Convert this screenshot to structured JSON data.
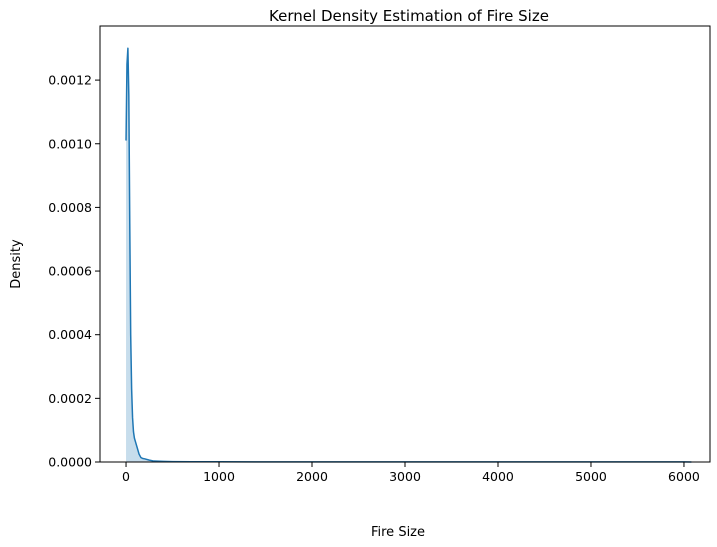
{
  "chart_data": {
    "type": "area",
    "title": "Kernel Density Estimation of Fire Size",
    "xlabel": "Fire Size",
    "ylabel": "Density",
    "xlim": [
      -280,
      6280
    ],
    "ylim": [
      0,
      0.00137
    ],
    "xticks": [
      0,
      1000,
      2000,
      3000,
      4000,
      5000,
      6000
    ],
    "xtick_labels": [
      "0",
      "1000",
      "2000",
      "3000",
      "4000",
      "5000",
      "6000"
    ],
    "yticks": [
      0,
      0.0002,
      0.0004,
      0.0006,
      0.0008,
      0.001,
      0.0012
    ],
    "ytick_labels": [
      "0.0000",
      "0.0002",
      "0.0004",
      "0.0006",
      "0.0008",
      "0.0010",
      "0.0012"
    ],
    "grid": false,
    "legend": "none",
    "line_color": "#1f77b4",
    "fill_color": "#1f77b4",
    "fill_opacity": 0.25,
    "series": [
      {
        "x": [
          0,
          10,
          20,
          30,
          40,
          50,
          60,
          70,
          80,
          90,
          100,
          120,
          140,
          160,
          180,
          200,
          250,
          300,
          400,
          500,
          700,
          1000,
          1500,
          2000,
          3000,
          4000,
          5000,
          6000,
          6080
        ],
        "y": [
          0.00101,
          0.00125,
          0.0013,
          0.00115,
          0.00075,
          0.0004,
          0.00023,
          0.00014,
          9.5e-05,
          7.5e-05,
          6.5e-05,
          4.5e-05,
          2.5e-05,
          1.4e-05,
          1.1e-05,
          1e-05,
          6e-06,
          3e-06,
          1.8e-06,
          1.2e-06,
          8e-07,
          6e-07,
          5e-07,
          5e-07,
          4e-07,
          4e-07,
          4e-07,
          3e-07,
          2e-07
        ]
      }
    ]
  }
}
